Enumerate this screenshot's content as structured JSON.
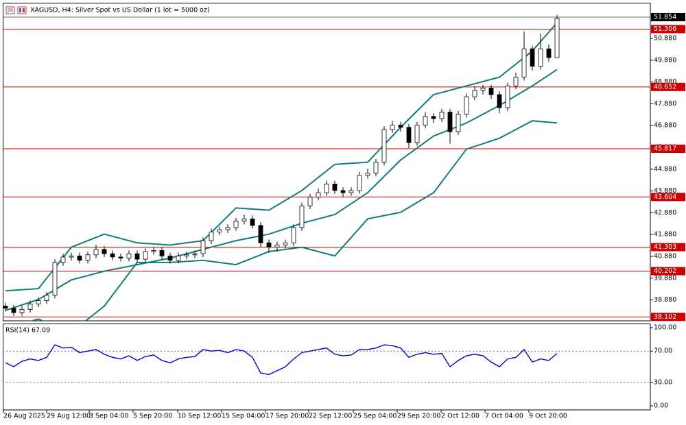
{
  "chart_data": [
    {
      "type": "candlestick",
      "title": "XAGUSD, H4:  Silver Spot vs US Dollar (1 lot = 5000 oz)",
      "open": [
        38.6,
        38.5,
        38.3,
        38.45,
        38.7,
        38.85,
        39.1,
        40.6,
        40.85,
        40.9,
        40.7,
        40.95,
        41.2,
        41.0,
        40.85,
        40.8,
        41.0,
        40.75,
        41.1,
        41.15,
        40.9,
        40.7,
        40.9,
        40.95,
        41.0,
        41.6,
        42.0,
        42.1,
        42.2,
        42.5,
        42.6,
        42.3,
        41.5,
        41.3,
        41.4,
        41.5,
        42.2,
        43.2,
        43.6,
        43.8,
        44.2,
        43.9,
        43.8,
        43.9,
        44.6,
        44.7,
        45.2,
        46.7,
        46.9,
        46.8,
        46.1,
        46.9,
        47.3,
        47.2,
        47.5,
        46.6,
        47.4,
        48.2,
        48.5,
        48.6,
        48.3,
        47.7,
        48.7,
        49.1,
        50.4,
        49.6,
        50.4,
        50.0
      ],
      "high": [
        38.75,
        38.65,
        38.6,
        38.85,
        39.0,
        39.25,
        40.75,
        41.0,
        41.05,
        41.05,
        41.1,
        41.4,
        41.35,
        41.15,
        41.0,
        41.15,
        41.15,
        41.25,
        41.3,
        41.3,
        41.05,
        41.05,
        41.1,
        41.15,
        41.75,
        42.15,
        42.25,
        42.35,
        42.65,
        42.8,
        42.75,
        42.45,
        41.65,
        41.55,
        41.65,
        42.35,
        43.35,
        43.75,
        44.0,
        44.35,
        44.35,
        44.05,
        44.05,
        44.75,
        44.9,
        45.35,
        46.85,
        47.1,
        47.05,
        46.95,
        47.05,
        47.5,
        47.45,
        47.65,
        47.65,
        47.55,
        48.35,
        48.7,
        48.75,
        48.75,
        48.45,
        48.85,
        49.3,
        51.2,
        50.55,
        51.1,
        50.6,
        51.95
      ],
      "low": [
        38.35,
        38.15,
        38.15,
        38.3,
        38.55,
        38.7,
        38.95,
        40.45,
        40.7,
        40.55,
        40.55,
        40.8,
        40.85,
        40.7,
        40.65,
        40.65,
        40.6,
        40.6,
        40.95,
        40.75,
        40.55,
        40.55,
        40.75,
        40.8,
        40.85,
        41.45,
        41.85,
        41.95,
        42.05,
        42.35,
        42.15,
        41.3,
        41.05,
        41.1,
        41.25,
        41.35,
        42.05,
        43.05,
        43.45,
        43.65,
        43.75,
        43.6,
        43.65,
        43.75,
        44.45,
        44.55,
        45.05,
        46.55,
        46.6,
        45.85,
        45.95,
        46.75,
        47.0,
        47.05,
        46.05,
        46.45,
        47.25,
        48.05,
        48.3,
        48.1,
        47.45,
        47.55,
        48.55,
        48.95,
        49.4,
        49.45,
        49.8,
        50.1
      ],
      "close": [
        38.5,
        38.3,
        38.45,
        38.7,
        38.85,
        39.1,
        40.6,
        40.85,
        40.9,
        40.7,
        40.95,
        41.2,
        41.0,
        40.85,
        40.8,
        41.0,
        40.75,
        41.1,
        41.15,
        40.9,
        40.7,
        40.9,
        40.95,
        41.0,
        41.6,
        42.0,
        42.1,
        42.2,
        42.5,
        42.6,
        42.3,
        41.5,
        41.3,
        41.4,
        41.5,
        42.2,
        43.2,
        43.6,
        43.8,
        44.2,
        43.9,
        43.8,
        43.9,
        44.6,
        44.7,
        45.2,
        46.7,
        46.9,
        46.8,
        46.1,
        46.9,
        47.3,
        47.2,
        47.5,
        46.6,
        47.4,
        48.2,
        48.5,
        48.6,
        48.3,
        47.7,
        48.7,
        49.1,
        50.4,
        49.6,
        50.4,
        50.0,
        51.8
      ],
      "color_up": "#ffffff",
      "color_down": "#000000",
      "band_x": [
        0,
        4,
        8,
        12,
        16,
        20,
        24,
        28,
        32,
        36,
        40,
        44,
        48,
        52,
        56,
        60,
        64,
        67
      ],
      "series": [
        {
          "color": "#0e7c7b",
          "values": [
            39.3,
            39.4,
            41.3,
            41.9,
            41.5,
            41.4,
            41.6,
            43.1,
            43.0,
            43.9,
            45.1,
            45.2,
            46.8,
            48.3,
            48.7,
            49.1,
            50.3,
            51.6
          ]
        },
        {
          "color": "#0e7c7b",
          "values": [
            38.4,
            38.9,
            39.8,
            40.2,
            40.5,
            40.8,
            41.2,
            41.6,
            41.9,
            42.4,
            42.8,
            43.8,
            45.3,
            46.4,
            47.0,
            47.8,
            48.7,
            49.45
          ]
        },
        {
          "color": "#0e7c7b",
          "values": [
            37.6,
            38.0,
            37.4,
            38.6,
            40.6,
            40.6,
            40.7,
            40.5,
            41.1,
            41.3,
            40.9,
            42.6,
            42.9,
            43.8,
            45.8,
            46.3,
            47.1,
            47.0
          ]
        }
      ],
      "levels": [
        51.306,
        48.652,
        45.817,
        43.604,
        41.303,
        40.202,
        38.102
      ],
      "level_color": "#cc0000",
      "last_price": 51.854,
      "ylim": [
        37.924,
        52.515
      ],
      "yticks": [
        {
          "value": 50.88,
          "label": "50.880"
        },
        {
          "value": 49.88,
          "label": "49.880"
        },
        {
          "value": 48.88,
          "label": "48.880"
        },
        {
          "value": 47.88,
          "label": "47.880"
        },
        {
          "value": 46.88,
          "label": "46.880"
        },
        {
          "value": 45.88,
          "label": "45.880"
        },
        {
          "value": 44.88,
          "label": "44.880"
        },
        {
          "value": 43.88,
          "label": "43.880"
        },
        {
          "value": 42.88,
          "label": "42.880"
        },
        {
          "value": 41.88,
          "label": "41.880"
        },
        {
          "value": 40.88,
          "label": "40.880"
        },
        {
          "value": 39.88,
          "label": "39.880"
        },
        {
          "value": 38.88,
          "label": "38.880"
        }
      ],
      "xticks": [
        {
          "value": -0.25,
          "label": "26 Aug 2025"
        },
        {
          "value": 5.0,
          "label": "29 Aug 12:00"
        },
        {
          "value": 10.17,
          "label": "3 Sep 04:00"
        },
        {
          "value": 15.5,
          "label": "5 Sep 20:00"
        },
        {
          "value": 20.92,
          "label": "10 Sep 12:00"
        },
        {
          "value": 26.25,
          "label": "15 Sep 04:00"
        },
        {
          "value": 31.58,
          "label": "17 Sep 20:00"
        },
        {
          "value": 36.83,
          "label": "22 Sep 12:00"
        },
        {
          "value": 42.25,
          "label": "25 Sep 04:00"
        },
        {
          "value": 47.58,
          "label": "29 Sep 20:00"
        },
        {
          "value": 52.92,
          "label": "2 Oct 12:00"
        },
        {
          "value": 58.25,
          "label": "7 Oct 04:00"
        },
        {
          "value": 63.58,
          "label": "9 Oct 20:00"
        }
      ]
    },
    {
      "type": "line",
      "title": "RSI(14) 67.09",
      "color": "#0000cc",
      "values": [
        55,
        50,
        57,
        60,
        58,
        62,
        78,
        74,
        75,
        68,
        70,
        72,
        66,
        62,
        60,
        64,
        58,
        63,
        65,
        58,
        55,
        60,
        62,
        63,
        72,
        70,
        71,
        68,
        72,
        70,
        62,
        42,
        40,
        45,
        50,
        60,
        68,
        70,
        72,
        74,
        66,
        64,
        65,
        72,
        72,
        74,
        78,
        77,
        74,
        62,
        66,
        68,
        66,
        67,
        50,
        58,
        64,
        66,
        64,
        56,
        50,
        60,
        62,
        72,
        56,
        60,
        58,
        67
      ],
      "ylim": [
        0,
        100
      ],
      "yticks": [
        {
          "value": 100,
          "label": "100.00"
        },
        {
          "value": 70,
          "label": "70.00"
        },
        {
          "value": 30,
          "label": "30.00"
        },
        {
          "value": 0,
          "label": "0.00"
        }
      ],
      "levels": [
        70,
        30
      ]
    }
  ]
}
